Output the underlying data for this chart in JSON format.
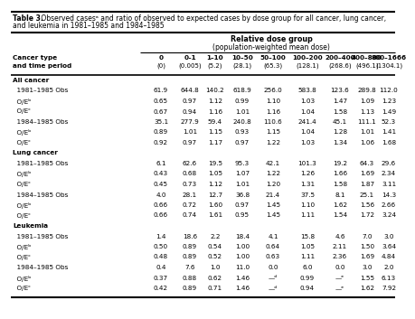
{
  "title_bold": "Table 3.",
  "title_rest": " Observed casesᵃ and ratio of observed to expected cases by dose group for all cancer, lung cancer,\nand leukemia in 1981–1985 and 1984–1985",
  "subtitle1": "Relative dose group",
  "subtitle2": "(population-weighted mean dose)",
  "col_headers_line1": [
    "",
    "0",
    "0–1",
    "1–10",
    "10–50",
    "50–100",
    "100–200",
    "200–400",
    "400–800",
    "800–1666"
  ],
  "col_headers_line2": [
    "Cancer type\nand time period",
    "(0)",
    "(0.005)",
    "(5.2)",
    "(28.1)",
    "(65.3)",
    "(128.1)",
    "(268.6)",
    "(496.1)",
    "(1304.1)"
  ],
  "rows": [
    [
      "All cancer",
      "",
      "",
      "",
      "",
      "",
      "",
      "",
      "",
      ""
    ],
    [
      "  1981–1985 Obs",
      "61.9",
      "644.8",
      "140.2",
      "618.9",
      "256.0",
      "583.8",
      "123.6",
      "289.8",
      "112.0"
    ],
    [
      "  O/Eᵇ",
      "0.65",
      "0.97",
      "1.12",
      "0.99",
      "1.10",
      "1.03",
      "1.47",
      "1.09",
      "1.23"
    ],
    [
      "  O/Eᶜ",
      "0.67",
      "0.94",
      "1.16",
      "1.01",
      "1.16",
      "1.04",
      "1.58",
      "1.13",
      "1.49"
    ],
    [
      "  1984–1985 Obs",
      "35.1",
      "277.9",
      "59.4",
      "240.8",
      "110.6",
      "241.4",
      "45.1",
      "111.1",
      "52.3"
    ],
    [
      "  O/Eᵇ",
      "0.89",
      "1.01",
      "1.15",
      "0.93",
      "1.15",
      "1.04",
      "1.28",
      "1.01",
      "1.41"
    ],
    [
      "  O/Eᶜ",
      "0.92",
      "0.97",
      "1.17",
      "0.97",
      "1.22",
      "1.03",
      "1.34",
      "1.06",
      "1.68"
    ],
    [
      "Lung cancer",
      "",
      "",
      "",
      "",
      "",
      "",
      "",
      "",
      ""
    ],
    [
      "  1981–1985 Obs",
      "6.1",
      "62.6",
      "19.5",
      "95.3",
      "42.1",
      "101.3",
      "19.2",
      "64.3",
      "29.6"
    ],
    [
      "  O/Eᵇ",
      "0.43",
      "0.68",
      "1.05",
      "1.07",
      "1.22",
      "1.26",
      "1.66",
      "1.69",
      "2.34"
    ],
    [
      "  O/Eᶜ",
      "0.45",
      "0.73",
      "1.12",
      "1.01",
      "1.20",
      "1.31",
      "1.58",
      "1.87",
      "3.11"
    ],
    [
      "  1984–1985 Obs",
      "4.0",
      "28.1",
      "12.7",
      "36.8",
      "21.4",
      "37.5",
      "8.1",
      "25.1",
      "14.3"
    ],
    [
      "  O/Eᵇ",
      "0.66",
      "0.72",
      "1.60",
      "0.97",
      "1.45",
      "1.10",
      "1.62",
      "1.56",
      "2.66"
    ],
    [
      "  O/Eᶜ",
      "0.66",
      "0.74",
      "1.61",
      "0.95",
      "1.45",
      "1.11",
      "1.54",
      "1.72",
      "3.24"
    ],
    [
      "Leukemia",
      "",
      "",
      "",
      "",
      "",
      "",
      "",
      "",
      ""
    ],
    [
      "  1981–1985 Obs",
      "1.4",
      "18.6",
      "2.2",
      "18.4",
      "4.1",
      "15.8",
      "4.6",
      "7.0",
      "3.0"
    ],
    [
      "  O/Eᵇ",
      "0.50",
      "0.89",
      "0.54",
      "1.00",
      "0.64",
      "1.05",
      "2.11",
      "1.50",
      "3.64"
    ],
    [
      "  O/Eᶜ",
      "0.48",
      "0.89",
      "0.52",
      "1.00",
      "0.63",
      "1.11",
      "2.36",
      "1.69",
      "4.84"
    ],
    [
      "  1984–1985 Obs",
      "0.4",
      "7.6",
      "1.0",
      "11.0",
      "0.0",
      "6.0",
      "0.0",
      "3.0",
      "2.0"
    ],
    [
      "  O/Eᵇ",
      "0.37",
      "0.88",
      "0.62",
      "1.46",
      "—ᵈ",
      "0.99",
      "—ᵉ",
      "1.55",
      "6.13"
    ],
    [
      "  O/Eᶜ",
      "0.42",
      "0.89",
      "0.71",
      "1.46",
      "—ᵈ",
      "0.94",
      "—ᵉ",
      "1.62",
      "7.92"
    ]
  ],
  "section_rows": [
    0,
    7,
    14
  ],
  "bg_color": "#ffffff",
  "text_color": "#000000"
}
